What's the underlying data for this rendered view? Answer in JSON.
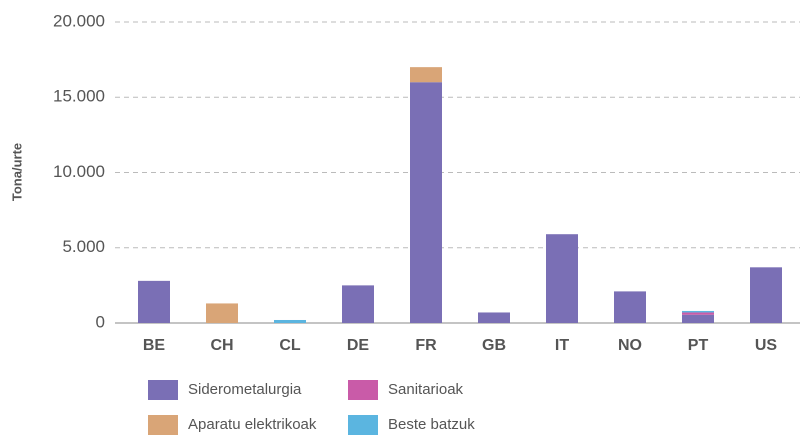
{
  "chart_data": {
    "type": "stacked_bar",
    "y_axis_label": "Tona/urte",
    "categories": [
      "BE",
      "CH",
      "CL",
      "DE",
      "FR",
      "GB",
      "IT",
      "NO",
      "PT",
      "US"
    ],
    "series": [
      {
        "name": "Siderometalurgia",
        "color": "#7a6fb5",
        "values": [
          2800,
          0,
          0,
          2500,
          16000,
          700,
          5900,
          2100,
          550,
          3700
        ]
      },
      {
        "name": "Aparatu elektrikoak",
        "color": "#d9a577",
        "values": [
          0,
          1300,
          0,
          0,
          1000,
          0,
          0,
          0,
          0,
          0
        ]
      },
      {
        "name": "Sanitarioak",
        "color": "#c95ba8",
        "values": [
          0,
          0,
          0,
          0,
          0,
          0,
          0,
          0,
          150,
          0
        ]
      },
      {
        "name": "Beste batzuk",
        "color": "#5bb5e0",
        "values": [
          0,
          0,
          200,
          0,
          0,
          0,
          0,
          0,
          100,
          0
        ]
      }
    ],
    "ylim": [
      0,
      20000
    ],
    "yticks": [
      0,
      {
        "value": 5000,
        "label": "5.000"
      },
      {
        "value": 10000,
        "label": "10.000"
      },
      {
        "value": 15000,
        "label": "15.000"
      },
      {
        "value": 20000,
        "label": "20.000"
      }
    ],
    "grid": true
  }
}
